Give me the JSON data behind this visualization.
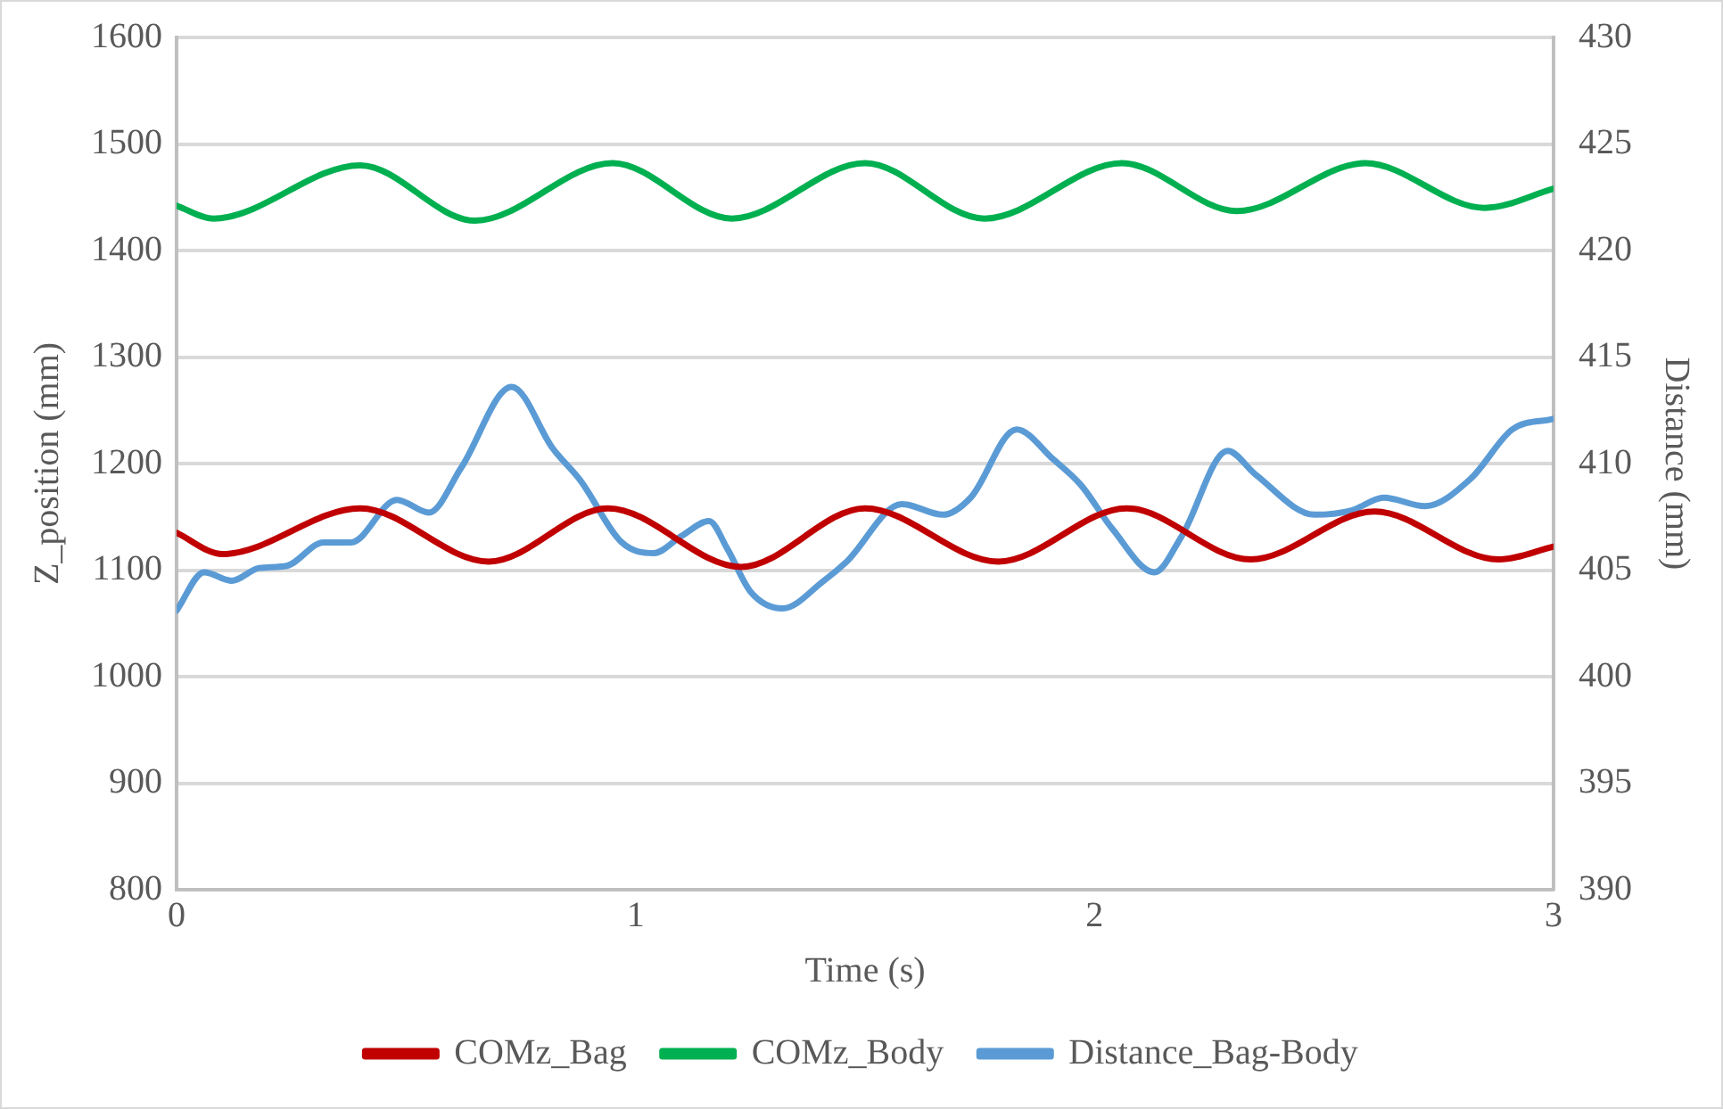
{
  "chart_data": {
    "type": "line",
    "xlabel": "Time (s)",
    "ylabel": "Z_position (mm)",
    "y2label": "Distance (mm)",
    "xlim": [
      0,
      3
    ],
    "xticks": [
      0,
      1,
      2,
      3
    ],
    "ylim": [
      800,
      1600
    ],
    "yticks": [
      800,
      900,
      1000,
      1100,
      1200,
      1300,
      1400,
      1500,
      1600
    ],
    "y2lim": [
      390,
      430
    ],
    "y2ticks": [
      390,
      395,
      400,
      405,
      410,
      415,
      420,
      425,
      430
    ],
    "grid": "y",
    "legend": "bottom",
    "marker": "none",
    "line_style": "solid",
    "series": [
      {
        "name": "COMz_Bag",
        "color": "#c00000",
        "x": [
          0,
          0.1,
          0.4,
          0.68,
          0.94,
          1.23,
          1.5,
          1.79,
          2.07,
          2.34,
          2.61,
          2.88,
          3.0
        ],
        "values": [
          1135,
          1115,
          1158,
          1108,
          1158,
          1103,
          1158,
          1108,
          1158,
          1110,
          1155,
          1110,
          1122
        ]
      },
      {
        "name": "COMz_Body",
        "color": "#00b050",
        "x": [
          0,
          0.08,
          0.4,
          0.65,
          0.95,
          1.21,
          1.5,
          1.76,
          2.06,
          2.31,
          2.59,
          2.85,
          3.0
        ],
        "values": [
          1442,
          1430,
          1480,
          1428,
          1482,
          1430,
          1482,
          1430,
          1482,
          1437,
          1482,
          1440,
          1458
        ]
      },
      {
        "name": "Distance_Bag-Body",
        "color": "#5b9bd5",
        "axis": "y2",
        "x": [
          0,
          0.06,
          0.12,
          0.18,
          0.24,
          0.32,
          0.38,
          0.48,
          0.55,
          0.62,
          0.73,
          0.82,
          0.88,
          0.97,
          1.04,
          1.1,
          1.16,
          1.2,
          1.25,
          1.32,
          1.41,
          1.46,
          1.58,
          1.67,
          1.73,
          1.83,
          1.91,
          1.97,
          2.04,
          2.13,
          2.19,
          2.29,
          2.35,
          2.48,
          2.56,
          2.63,
          2.72,
          2.82,
          2.91,
          3.0
        ],
        "values": [
          403.1,
          404.9,
          404.5,
          405.1,
          405.2,
          406.3,
          406.3,
          408.3,
          407.7,
          409.8,
          413.6,
          410.7,
          409.2,
          406.3,
          405.8,
          406.6,
          407.3,
          406.0,
          404.0,
          403.2,
          404.5,
          405.4,
          408.1,
          407.6,
          408.4,
          411.6,
          410.2,
          409.0,
          406.9,
          404.9,
          406.6,
          410.6,
          409.5,
          407.6,
          407.8,
          408.4,
          408.0,
          409.3,
          411.6,
          412.1
        ]
      }
    ]
  }
}
